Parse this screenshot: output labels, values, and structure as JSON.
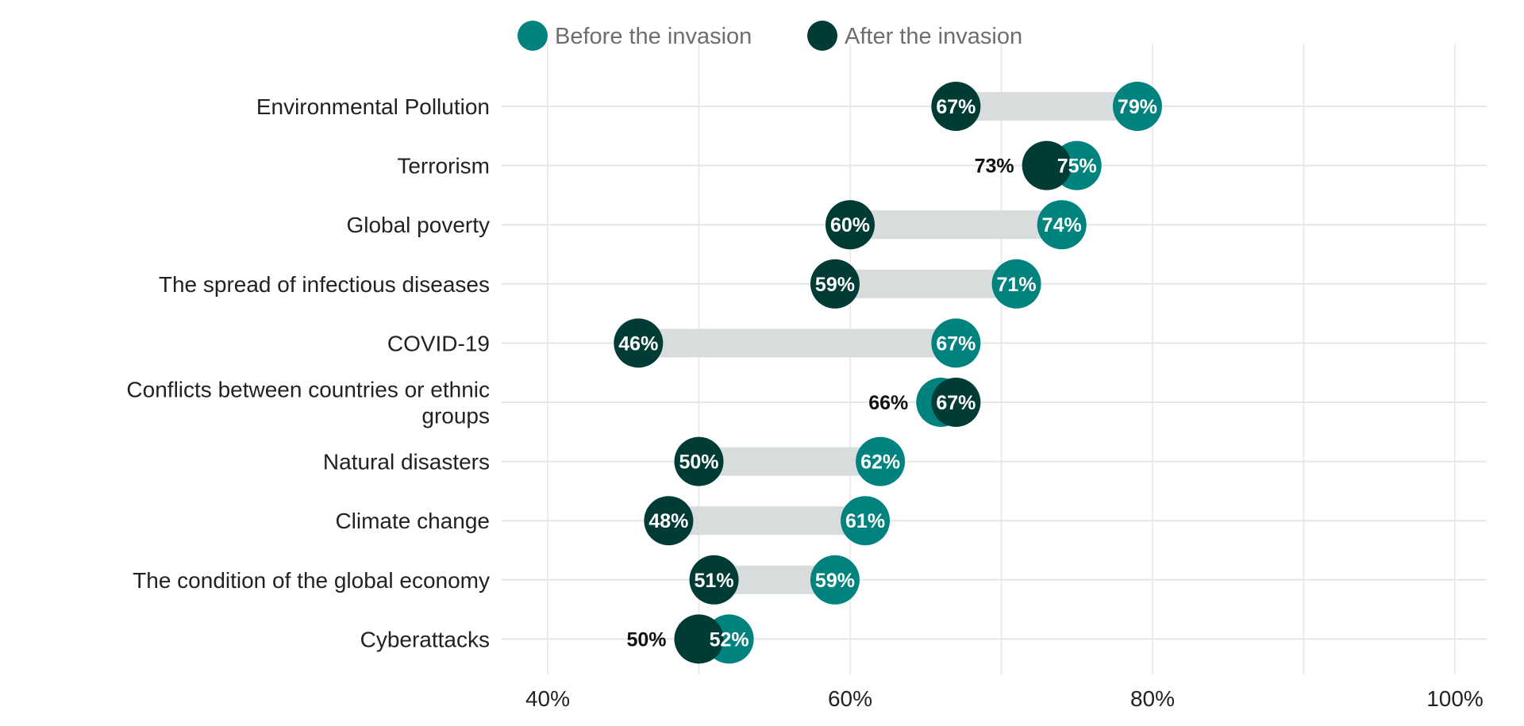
{
  "chart_data": {
    "type": "dumbbell",
    "title": "",
    "xlabel": "",
    "ylabel": "",
    "xlim": [
      35,
      103
    ],
    "xticks": [
      40,
      60,
      80,
      100
    ],
    "xtick_labels": [
      "40%",
      "60%",
      "80%",
      "100%"
    ],
    "grid": true,
    "legend_position": "top",
    "series": [
      {
        "name": "Before the invasion",
        "color": "#00827f",
        "values": [
          79,
          75,
          74,
          71,
          67,
          66,
          62,
          61,
          59,
          52
        ]
      },
      {
        "name": "After the invasion",
        "color": "#003b35",
        "values": [
          67,
          73,
          60,
          59,
          46,
          67,
          50,
          48,
          51,
          50
        ]
      }
    ],
    "categories": [
      "Environmental Pollution",
      "Terrorism",
      "Global poverty",
      "The spread of infectious diseases",
      "COVID-19",
      "Conflicts between countries or ethnic groups",
      "Natural disasters",
      "Climate change",
      "The condition of the global economy",
      "Cyberattacks"
    ],
    "category_lines": [
      [
        "Environmental Pollution"
      ],
      [
        "Terrorism"
      ],
      [
        "Global poverty"
      ],
      [
        "The spread of infectious diseases"
      ],
      [
        "COVID-19"
      ],
      [
        "Conflicts between countries or ethnic",
        "groups"
      ],
      [
        "Natural disasters"
      ],
      [
        "Climate change"
      ],
      [
        "The condition of the global economy"
      ],
      [
        "Cyberattacks"
      ]
    ],
    "value_suffix": "%",
    "connector_color": "#d9dcdc",
    "grid_color": "#e6e6e6"
  }
}
